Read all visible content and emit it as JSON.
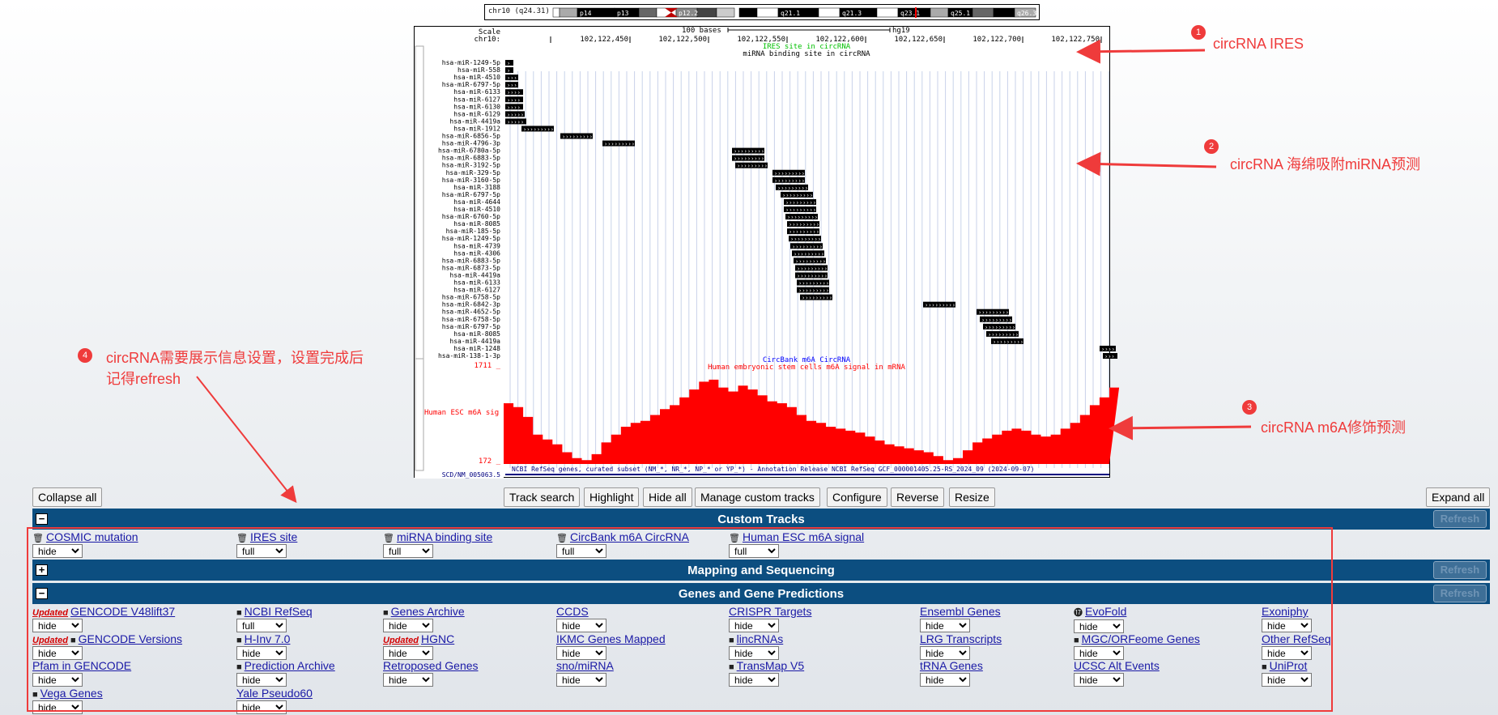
{
  "ideogram": {
    "label": "chr10 (q24.31)",
    "bands": [
      "p14",
      "p13",
      "p12.2",
      "q21.1",
      "q21.3",
      "q23.1",
      "q25.1",
      "q26.3"
    ]
  },
  "browser": {
    "scale_label": "Scale",
    "chrom_label": "chr10:",
    "scale_text": "100 bases",
    "assembly": "hg19",
    "ticks": [
      "102,122,450",
      "102,122,500",
      "102,122,550",
      "102,122,600",
      "102,122,650",
      "102,122,700",
      "102,122,750"
    ],
    "ires_track_title": "IRES site in circRNA",
    "mirna_track_title": "miRNA binding site in circRNA",
    "mirna_labels": [
      "hsa-miR-1249-5p",
      "hsa-miR-558",
      "hsa-miR-4510",
      "hsa-miR-6797-5p",
      "hsa-miR-6133",
      "hsa-miR-6127",
      "hsa-miR-6130",
      "hsa-miR-6129",
      "hsa-miR-4419a",
      "hsa-miR-1912",
      "hsa-miR-6856-5p",
      "hsa-miR-4796-3p",
      "hsa-miR-6780a-5p",
      "hsa-miR-6883-5p",
      "hsa-miR-3192-5p",
      "hsa-miR-329-5p",
      "hsa-miR-3160-5p",
      "hsa-miR-3188",
      "hsa-miR-6797-5p",
      "hsa-miR-4644",
      "hsa-miR-4510",
      "hsa-miR-6760-5p",
      "hsa-miR-8085",
      "hsa-miR-185-5p",
      "hsa-miR-1249-5p",
      "hsa-miR-4739",
      "hsa-miR-4306",
      "hsa-miR-6883-5p",
      "hsa-miR-6873-5p",
      "hsa-miR-4419a",
      "hsa-miR-6133",
      "hsa-miR-6127",
      "hsa-miR-6758-5p",
      "hsa-miR-6842-3p",
      "hsa-miR-4652-5p",
      "hsa-miR-6758-5p",
      "hsa-miR-6797-5p",
      "hsa-miR-8085",
      "hsa-miR-4419a",
      "hsa-miR-1248",
      "hsa-miR-138-1-3p"
    ],
    "circbank_title": "CircBank m6A CircRNA",
    "signal_title": "Human embryonic stem cells m6A signal in mRNA",
    "signal_label": "Human ESC m6A sig",
    "signal_max": "1711 _",
    "signal_min": "172 _",
    "refseq_label": "SCD/NM_005063.5",
    "refseq_title": "NCBI RefSeq genes, curated subset (NM_*, NR_*, NP_* or YP_*) - Annotation Release NCBI RefSeq GCF_000001405.25-RS_2024_09 (2024-09-07)"
  },
  "annotations": [
    {
      "num": "1",
      "text": "circRNA IRES"
    },
    {
      "num": "2",
      "text": "circRNA 海绵吸附miRNA预测"
    },
    {
      "num": "3",
      "text": "circRNA m6A修饰预测"
    },
    {
      "num": "4",
      "text": "circRNA需要展示信息设置，设置完成后",
      "text2": "记得refresh"
    }
  ],
  "buttons": {
    "collapse_all": "Collapse all",
    "track_search": "Track search",
    "highlight": "Highlight",
    "hide_all": "Hide all",
    "manage_custom_tracks": "Manage custom tracks",
    "configure": "Configure",
    "reverse": "Reverse",
    "resize": "Resize",
    "expand_all": "Expand all"
  },
  "sections": {
    "custom": {
      "title": "Custom Tracks",
      "toggle": "−",
      "refresh": "Refresh"
    },
    "mapping": {
      "title": "Mapping and Sequencing",
      "toggle": "+",
      "refresh": "Refresh"
    },
    "genes": {
      "title": "Genes and Gene Predictions",
      "toggle": "−",
      "refresh": "Refresh"
    }
  },
  "custom_tracks": [
    {
      "name": "COSMIC mutation",
      "value": "hide",
      "icon": "trash-icon"
    },
    {
      "name": "IRES site",
      "value": "full",
      "icon": "trash-icon"
    },
    {
      "name": "miRNA binding site",
      "value": "full",
      "icon": "trash-icon"
    },
    {
      "name": "CircBank m6A CircRNA",
      "value": "full",
      "icon": "trash-icon"
    },
    {
      "name": "Human ESC m6A signal",
      "value": "full",
      "icon": "trash-icon"
    }
  ],
  "gene_tracks": [
    {
      "name": "GENCODE V48lift37",
      "value": "hide",
      "badge": "Updated"
    },
    {
      "name": "NCBI RefSeq",
      "value": "full",
      "icon": "folder-icon"
    },
    {
      "name": "Genes Archive",
      "value": "hide",
      "icon": "folder-icon"
    },
    {
      "name": "CCDS",
      "value": "hide"
    },
    {
      "name": "CRISPR Targets",
      "value": "hide"
    },
    {
      "name": "Ensembl Genes",
      "value": "hide"
    },
    {
      "name": "EvoFold",
      "value": "hide",
      "icon": "badge-17-icon"
    },
    {
      "name": "Exoniphy",
      "value": "hide"
    },
    {
      "name": "GENCODE Versions",
      "value": "hide",
      "badge": "Updated",
      "icon": "folder-icon"
    },
    {
      "name": "H-Inv 7.0",
      "value": "hide",
      "icon": "folder-icon"
    },
    {
      "name": "HGNC",
      "value": "hide",
      "badge": "Updated"
    },
    {
      "name": "IKMC Genes Mapped",
      "value": "hide"
    },
    {
      "name": "lincRNAs",
      "value": "hide",
      "icon": "folder-icon"
    },
    {
      "name": "LRG Transcripts",
      "value": "hide"
    },
    {
      "name": "MGC/ORFeome Genes",
      "value": "hide",
      "icon": "folder-icon"
    },
    {
      "name": "Other RefSeq",
      "value": "hide"
    },
    {
      "name": "Pfam in GENCODE",
      "value": "hide"
    },
    {
      "name": "Prediction Archive",
      "value": "hide",
      "icon": "folder-icon"
    },
    {
      "name": "Retroposed Genes",
      "value": "hide"
    },
    {
      "name": "sno/miRNA",
      "value": "hide"
    },
    {
      "name": "TransMap V5",
      "value": "hide",
      "icon": "folder-icon"
    },
    {
      "name": "tRNA Genes",
      "value": "hide"
    },
    {
      "name": "UCSC Alt Events",
      "value": "hide"
    },
    {
      "name": "UniProt",
      "value": "hide",
      "icon": "folder-icon"
    },
    {
      "name": "Vega Genes",
      "value": "hide",
      "icon": "folder-icon"
    },
    {
      "name": "Yale Pseudo60",
      "value": "hide"
    }
  ],
  "colors": {
    "section_bg": "#0c4e80",
    "annotation_red": "#ef3b3b",
    "link_blue": "#1a1aa6",
    "signal_red": "#ff0000"
  }
}
